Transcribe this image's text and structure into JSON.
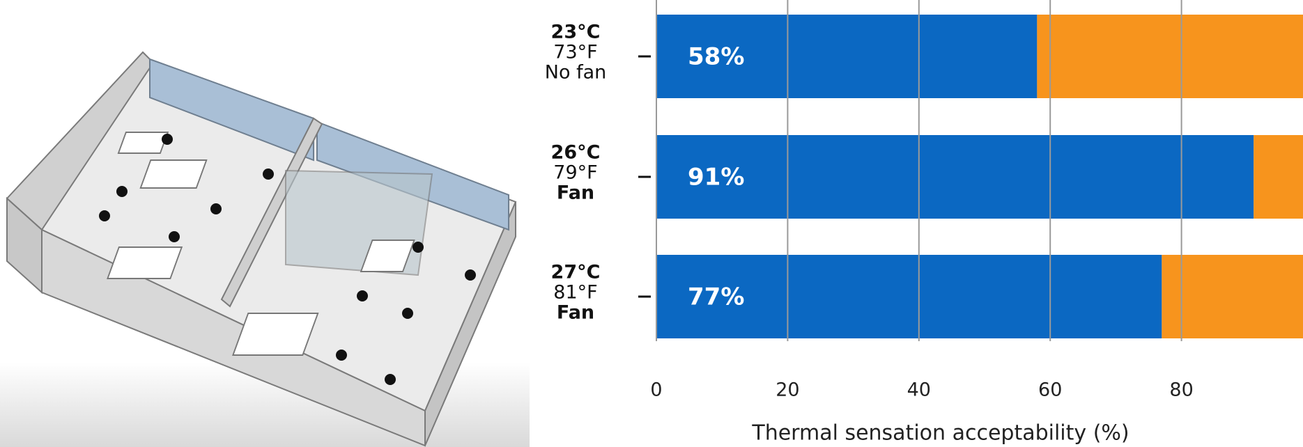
{
  "chart_data": {
    "type": "stacked-barh",
    "categories": [
      [
        "23°C",
        "73°F",
        "No fan"
      ],
      [
        "26°C",
        "79°F",
        "Fan"
      ],
      [
        "27°C",
        "81°F",
        "Fan"
      ]
    ],
    "series": [
      {
        "color": "#0b68c2",
        "values": [
          58,
          91,
          77
        ],
        "value_labels": [
          "58%",
          "91%",
          "77%"
        ]
      },
      {
        "color": "#f7941d",
        "values": [
          42,
          9,
          23
        ]
      }
    ],
    "xlim": [
      0,
      100
    ],
    "xticks": [
      0,
      20,
      40,
      60,
      80
    ],
    "xlabel": "Thermal sensation acceptability (%)",
    "grid": true
  }
}
